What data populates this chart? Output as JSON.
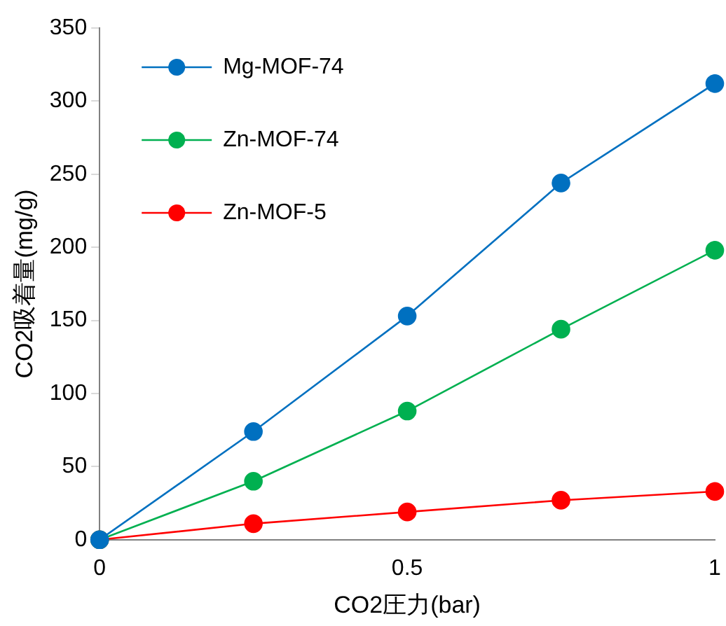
{
  "chart_data": {
    "type": "line",
    "xlabel": "CO2圧力(bar)",
    "ylabel": "CO2吸着量(mg/g)",
    "x": [
      0,
      0.25,
      0.5,
      0.75,
      1
    ],
    "xlim": [
      0,
      1
    ],
    "xticks": [
      0,
      0.5,
      1
    ],
    "ylim": [
      0,
      350
    ],
    "yticks": [
      0,
      50,
      100,
      150,
      200,
      250,
      300,
      350
    ],
    "grid": false,
    "legend": "top left",
    "marker": "circle",
    "line_style": "solid",
    "series": [
      {
        "name": "Mg-MOF-74",
        "color": "#0070c0",
        "values": [
          0,
          74,
          153,
          244,
          312
        ]
      },
      {
        "name": "Zn-MOF-74",
        "color": "#00b050",
        "values": [
          0,
          40,
          88,
          144,
          198
        ]
      },
      {
        "name": "Zn-MOF-5",
        "color": "#ff0000",
        "values": [
          0,
          11,
          19,
          27,
          33
        ]
      }
    ]
  }
}
